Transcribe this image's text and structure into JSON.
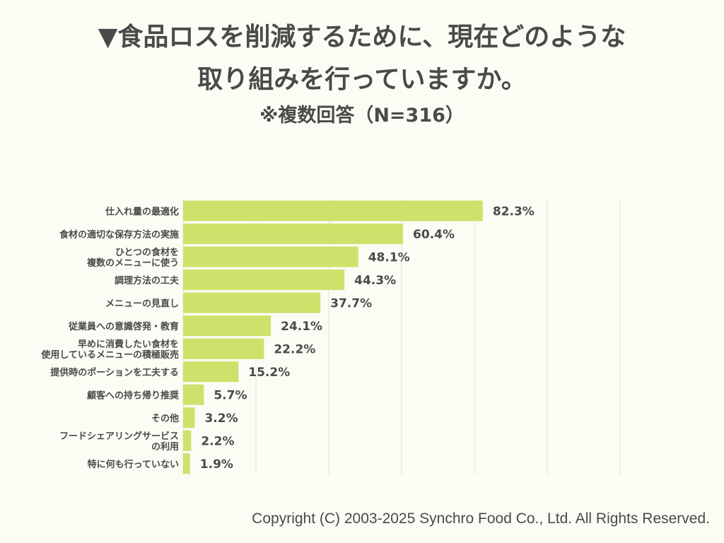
{
  "title": {
    "line1": "▼食品ロスを削減するために、現在どのような",
    "line2": "取り組みを行っていますか。",
    "line3": "※複数回答（N=316）"
  },
  "colors": {
    "bar": "#cde26a",
    "grid": "#e6e5dd",
    "text": "#4a4a4a",
    "background": "#fcfbf4"
  },
  "chart_data": {
    "type": "bar",
    "orientation": "horizontal",
    "categories": [
      [
        "仕入れ量の最適化"
      ],
      [
        "食材の適切な保存方法の実施"
      ],
      [
        "ひとつの食材を",
        "複数のメニューに使う"
      ],
      [
        "調理方法の工夫"
      ],
      [
        "メニューの見直し"
      ],
      [
        "従業員への意識啓発・教育"
      ],
      [
        "早めに消費したい食材を",
        "使用しているメニューの積極販売"
      ],
      [
        "提供時のポーションを工夫する"
      ],
      [
        "顧客への持ち帰り推奨"
      ],
      [
        "その他"
      ],
      [
        "フードシェアリングサービス",
        "の利用"
      ],
      [
        "特に何も行っていない"
      ]
    ],
    "values": [
      82.3,
      60.4,
      48.1,
      44.3,
      37.7,
      24.1,
      22.2,
      15.2,
      5.7,
      3.2,
      2.2,
      1.9
    ],
    "value_labels": [
      "82.3%",
      "60.4%",
      "48.1%",
      "44.3%",
      "37.7%",
      "24.1%",
      "22.2%",
      "15.2%",
      "5.7%",
      "3.2%",
      "2.2%",
      "1.9%"
    ],
    "xlim": [
      0,
      120
    ],
    "grid": true
  },
  "footer": "Copyright (C) 2003-2025  Synchro Food Co., Ltd. All Rights Reserved."
}
